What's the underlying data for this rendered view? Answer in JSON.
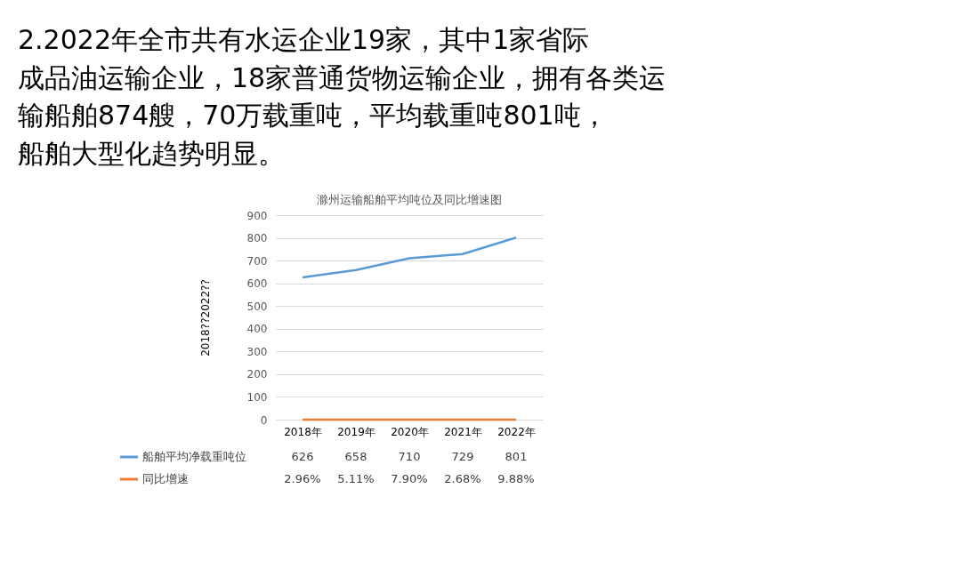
{
  "chart_data": {
    "type": "line",
    "title": "滁州运输船舶平均吨位及同比增速图",
    "annotations": [
      "2.2022年全市共有水运企业19家，其中1家省际成品油运输企业，18家普通货物运输企业，拥有各类运输船舶874艘，70万载重吨，平均载重吨801吨，船舶大型化趋势明显。"
    ],
    "ylabel": "2018??2022??",
    "categories": [
      "2018年",
      "2019年",
      "2020年",
      "2021年",
      "2022年"
    ],
    "series": [
      {
        "name": "船舶平均净载重吨位",
        "color": "#5b9bd5",
        "values": [
          626,
          658,
          710,
          729,
          801
        ]
      },
      {
        "name": "同比增速",
        "color": "#ed7d31",
        "values": [
          0.0296,
          0.0511,
          0.079,
          0.0268,
          0.0988
        ],
        "value_labels": [
          "2.96%",
          "5.11%",
          "7.90%",
          "2.68%",
          "9.88%"
        ]
      }
    ],
    "data_labels": true,
    "ylim": [
      0,
      900
    ],
    "yticks": [
      0,
      100,
      200,
      300,
      400,
      500,
      600,
      700,
      800,
      900
    ],
    "grid": "y",
    "legend": "bottom",
    "marker": "none",
    "line_style": "solid"
  }
}
